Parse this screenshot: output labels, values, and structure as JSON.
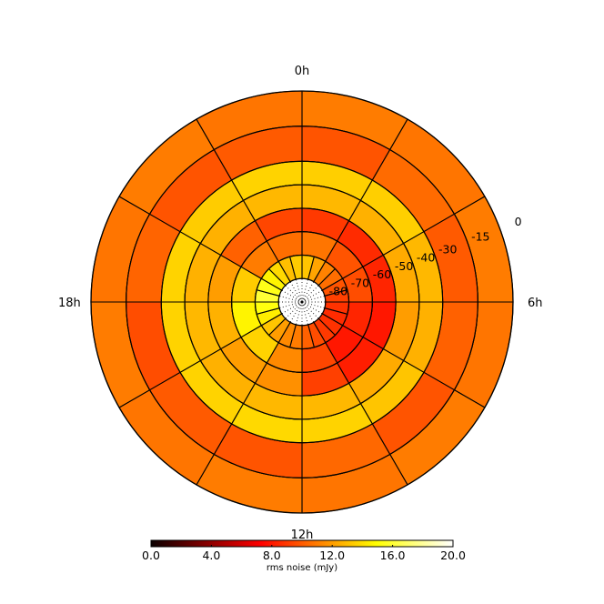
{
  "chart_data": {
    "type": "heatmap",
    "projection": "polar",
    "angle_labels": [
      "0h",
      "6h",
      "12h",
      "18h"
    ],
    "ring_labels": [
      "0",
      "-15",
      "-30",
      "-40",
      "-50",
      "-60",
      "-70",
      "-80"
    ],
    "ring_label_angle_hours": 4.6,
    "ring_boundaries": [
      0,
      -15,
      -30,
      -40,
      -50,
      -60,
      -70,
      -80,
      -90
    ],
    "rings": [
      {
        "dec_range": [
          -15,
          0
        ],
        "sectors": 12,
        "values": [
          11.0,
          10.8,
          11.0,
          10.8,
          11.0,
          10.8,
          11.0,
          10.8,
          11.0,
          10.8,
          11.0,
          10.8
        ]
      },
      {
        "dec_range": [
          -30,
          -15
        ],
        "sectors": 12,
        "values": [
          9.8,
          10.5,
          10.0,
          10.2,
          9.8,
          10.4,
          9.8,
          10.0,
          9.6,
          10.3,
          9.8,
          10.0
        ]
      },
      {
        "dec_range": [
          -40,
          -30
        ],
        "sectors": 12,
        "values": [
          13.5,
          13.5,
          12.8,
          12.6,
          13.2,
          13.6,
          13.8,
          13.6,
          13.6,
          13.6,
          13.4,
          13.6
        ]
      },
      {
        "dec_range": [
          -50,
          -40
        ],
        "sectors": 12,
        "values": [
          12.8,
          12.6,
          12.4,
          12.0,
          12.4,
          12.8,
          12.8,
          12.6,
          12.8,
          12.6,
          12.6,
          12.8
        ]
      },
      {
        "dec_range": [
          -60,
          -50
        ],
        "sectors": 12,
        "values": [
          9.0,
          8.6,
          8.4,
          8.0,
          8.2,
          9.2,
          11.6,
          12.0,
          12.6,
          12.0,
          10.2,
          9.4
        ]
      },
      {
        "dec_range": [
          -70,
          -60
        ],
        "sectors": 12,
        "values": [
          10.8,
          9.8,
          9.6,
          8.4,
          8.0,
          9.4,
          11.4,
          13.6,
          14.6,
          13.4,
          11.0,
          10.6
        ]
      },
      {
        "dec_range": [
          -80,
          -70
        ],
        "sectors": 24,
        "values": [
          13.2,
          12.2,
          11.2,
          10.6,
          9.8,
          9.2,
          8.8,
          8.6,
          8.8,
          9.0,
          9.6,
          10.2,
          11.0,
          11.4,
          12.0,
          13.2,
          14.4,
          15.2,
          16.0,
          15.4,
          14.6,
          13.8,
          13.0,
          13.4
        ]
      },
      {
        "dec_range": [
          -90,
          -80
        ],
        "sectors": 0,
        "values": []
      }
    ],
    "colorbar": {
      "colormap": "hot",
      "vmin": 0.0,
      "vmax": 20.0,
      "ticks": [
        "0.0",
        "4.0",
        "8.0",
        "12.0",
        "16.0",
        "20.0"
      ],
      "label": "rms noise (mJy)",
      "orientation": "horizontal"
    },
    "grid": true
  }
}
